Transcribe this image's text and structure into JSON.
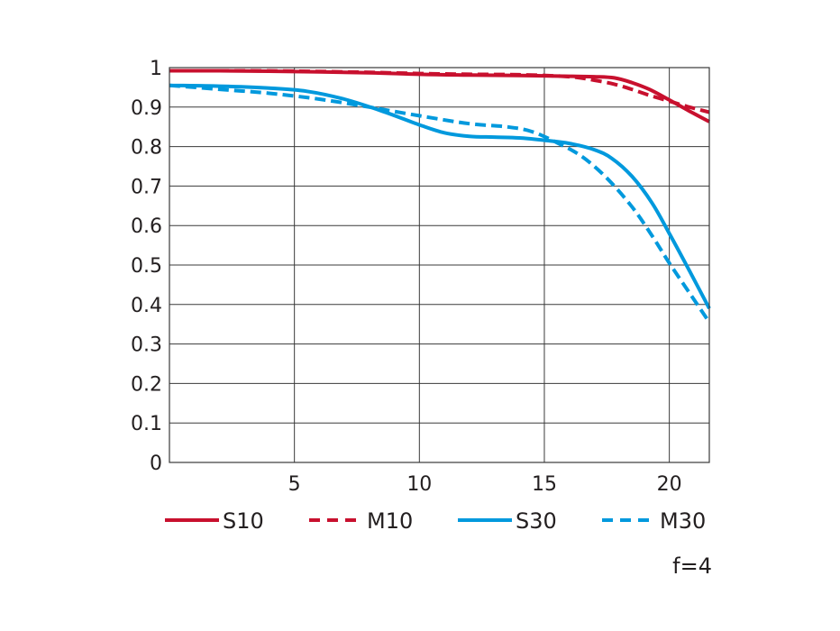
{
  "chart_data": {
    "type": "line",
    "title": "",
    "xlabel": "",
    "ylabel": "",
    "xlim": [
      0,
      21.6
    ],
    "ylim": [
      0,
      1
    ],
    "x_ticks": [
      "5",
      "10",
      "15",
      "20"
    ],
    "x_tick_values": [
      5,
      10,
      15,
      20
    ],
    "y_ticks": [
      "0",
      "0.1",
      "0.2",
      "0.3",
      "0.4",
      "0.5",
      "0.6",
      "0.7",
      "0.8",
      "0.9",
      "1"
    ],
    "y_tick_values": [
      0,
      0.1,
      0.2,
      0.3,
      0.4,
      0.5,
      0.6,
      0.7,
      0.8,
      0.9,
      1
    ],
    "grid": true,
    "legend_position": "bottom",
    "annotation": "f=4",
    "series": [
      {
        "name": "S10",
        "color": "#c8102e",
        "dash": "solid",
        "points": [
          [
            0,
            0.992
          ],
          [
            2,
            0.992
          ],
          [
            5,
            0.99
          ],
          [
            8,
            0.987
          ],
          [
            10,
            0.983
          ],
          [
            12,
            0.981
          ],
          [
            14,
            0.98
          ],
          [
            16,
            0.978
          ],
          [
            17,
            0.977
          ],
          [
            17.8,
            0.974
          ],
          [
            18.5,
            0.962
          ],
          [
            19.2,
            0.945
          ],
          [
            20,
            0.918
          ],
          [
            20.8,
            0.89
          ],
          [
            21.6,
            0.863
          ]
        ]
      },
      {
        "name": "M10",
        "color": "#c8102e",
        "dash": "dashed",
        "points": [
          [
            0,
            0.992
          ],
          [
            3,
            0.992
          ],
          [
            5,
            0.991
          ],
          [
            8,
            0.988
          ],
          [
            10,
            0.985
          ],
          [
            12,
            0.983
          ],
          [
            14,
            0.982
          ],
          [
            16,
            0.977
          ],
          [
            17,
            0.968
          ],
          [
            17.8,
            0.958
          ],
          [
            18.5,
            0.945
          ],
          [
            19.2,
            0.93
          ],
          [
            20,
            0.915
          ],
          [
            20.8,
            0.9
          ],
          [
            21.6,
            0.887
          ]
        ]
      },
      {
        "name": "S30",
        "color": "#0099dd",
        "dash": "solid",
        "points": [
          [
            0,
            0.955
          ],
          [
            2,
            0.953
          ],
          [
            4,
            0.948
          ],
          [
            5.5,
            0.94
          ],
          [
            7,
            0.92
          ],
          [
            8.5,
            0.89
          ],
          [
            10,
            0.855
          ],
          [
            11,
            0.835
          ],
          [
            12,
            0.826
          ],
          [
            13,
            0.824
          ],
          [
            14,
            0.822
          ],
          [
            15,
            0.816
          ],
          [
            16,
            0.808
          ],
          [
            17,
            0.792
          ],
          [
            17.7,
            0.77
          ],
          [
            18.5,
            0.725
          ],
          [
            19.3,
            0.658
          ],
          [
            20,
            0.58
          ],
          [
            20.8,
            0.486
          ],
          [
            21.6,
            0.39
          ]
        ]
      },
      {
        "name": "M30",
        "color": "#0099dd",
        "dash": "dashed",
        "points": [
          [
            0,
            0.955
          ],
          [
            2,
            0.945
          ],
          [
            4,
            0.935
          ],
          [
            6,
            0.92
          ],
          [
            8,
            0.9
          ],
          [
            10,
            0.878
          ],
          [
            12,
            0.858
          ],
          [
            13.5,
            0.85
          ],
          [
            14.5,
            0.838
          ],
          [
            15.5,
            0.81
          ],
          [
            16.5,
            0.775
          ],
          [
            17.5,
            0.72
          ],
          [
            18.5,
            0.648
          ],
          [
            19.3,
            0.575
          ],
          [
            20,
            0.505
          ],
          [
            20.8,
            0.43
          ],
          [
            21.6,
            0.355
          ]
        ]
      }
    ]
  }
}
